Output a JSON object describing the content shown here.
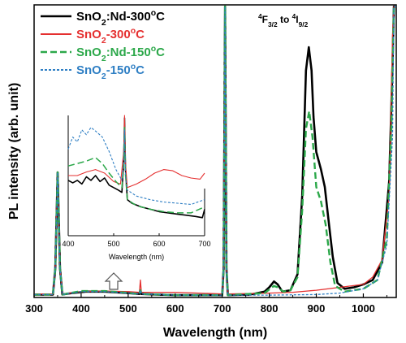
{
  "chart_data": [
    {
      "type": "line",
      "xlabel": "Wavelength (nm)",
      "ylabel": "PL intensity (arb. unit)",
      "xlim": [
        300,
        1070
      ],
      "ylim": [
        0,
        1.0
      ],
      "xticks": [
        300,
        400,
        500,
        600,
        700,
        800,
        900,
        1000
      ],
      "legend_position": "top-left",
      "annotation": {
        "text": "4F3/2 to 4I9/2",
        "parts": [
          [
            "sup",
            "4"
          ],
          [
            "n",
            "F"
          ],
          [
            "sub",
            "3/2"
          ],
          [
            "n",
            " to "
          ],
          [
            "sup",
            "4"
          ],
          [
            "n",
            "I"
          ],
          [
            "sub",
            "9/2"
          ]
        ],
        "x": 880
      },
      "series": [
        {
          "name": "SnO2:Nd-300oC",
          "name_parts": [
            [
              "n",
              "SnO"
            ],
            [
              "sub",
              "2"
            ],
            [
              "n",
              ":Nd-300"
            ],
            [
              "sup",
              "o"
            ],
            [
              "n",
              "C"
            ]
          ],
          "color": "#000000",
          "dash": "solid",
          "width": 2.6,
          "points": [
            [
              300,
              0.01
            ],
            [
              340,
              0.01
            ],
            [
              345,
              0.1
            ],
            [
              350,
              0.43
            ],
            [
              355,
              0.1
            ],
            [
              360,
              0.01
            ],
            [
              380,
              0.015
            ],
            [
              410,
              0.02
            ],
            [
              450,
              0.02
            ],
            [
              500,
              0.015
            ],
            [
              524,
              0.012
            ],
            [
              526,
              0.025
            ],
            [
              528,
              0.012
            ],
            [
              560,
              0.01
            ],
            [
              600,
              0.008
            ],
            [
              700,
              0.008
            ],
            [
              703,
              0.1
            ],
            [
              706,
              1.0
            ],
            [
              709,
              0.1
            ],
            [
              712,
              0.008
            ],
            [
              760,
              0.01
            ],
            [
              790,
              0.02
            ],
            [
              800,
              0.035
            ],
            [
              810,
              0.055
            ],
            [
              818,
              0.045
            ],
            [
              828,
              0.02
            ],
            [
              845,
              0.025
            ],
            [
              860,
              0.08
            ],
            [
              870,
              0.35
            ],
            [
              878,
              0.78
            ],
            [
              884,
              0.86
            ],
            [
              890,
              0.78
            ],
            [
              894,
              0.62
            ],
            [
              900,
              0.5
            ],
            [
              910,
              0.44
            ],
            [
              918,
              0.38
            ],
            [
              925,
              0.28
            ],
            [
              935,
              0.14
            ],
            [
              945,
              0.05
            ],
            [
              960,
              0.03
            ],
            [
              980,
              0.035
            ],
            [
              1000,
              0.045
            ],
            [
              1020,
              0.06
            ],
            [
              1040,
              0.12
            ],
            [
              1055,
              0.4
            ],
            [
              1062,
              0.8
            ],
            [
              1065,
              1.0
            ],
            [
              1070,
              1.0
            ]
          ]
        },
        {
          "name": "SnO2-300oC",
          "name_parts": [
            [
              "n",
              "SnO"
            ],
            [
              "sub",
              "2"
            ],
            [
              "n",
              "-300"
            ],
            [
              "sup",
              "o"
            ],
            [
              "n",
              "C"
            ]
          ],
          "color": "#e53030",
          "dash": "solid",
          "width": 1.3,
          "points": [
            [
              300,
              0.012
            ],
            [
              340,
              0.012
            ],
            [
              345,
              0.1
            ],
            [
              350,
              0.43
            ],
            [
              355,
              0.1
            ],
            [
              360,
              0.012
            ],
            [
              400,
              0.02
            ],
            [
              450,
              0.022
            ],
            [
              500,
              0.02
            ],
            [
              524,
              0.018
            ],
            [
              526,
              0.06
            ],
            [
              528,
              0.018
            ],
            [
              560,
              0.018
            ],
            [
              600,
              0.018
            ],
            [
              650,
              0.015
            ],
            [
              700,
              0.012
            ],
            [
              703,
              0.1
            ],
            [
              706,
              1.0
            ],
            [
              709,
              0.1
            ],
            [
              712,
              0.012
            ],
            [
              800,
              0.015
            ],
            [
              850,
              0.018
            ],
            [
              900,
              0.025
            ],
            [
              950,
              0.035
            ],
            [
              1000,
              0.045
            ],
            [
              1020,
              0.07
            ],
            [
              1040,
              0.13
            ],
            [
              1055,
              0.35
            ],
            [
              1062,
              0.9
            ],
            [
              1065,
              1.0
            ],
            [
              1070,
              1.0
            ]
          ]
        },
        {
          "name": "SnO2:Nd-150oC",
          "name_parts": [
            [
              "n",
              "SnO"
            ],
            [
              "sub",
              "2"
            ],
            [
              "n",
              ":Nd-150"
            ],
            [
              "sup",
              "o"
            ],
            [
              "n",
              "C"
            ]
          ],
          "color": "#2ca84a",
          "dash": "dashed",
          "width": 2.4,
          "points": [
            [
              300,
              0.01
            ],
            [
              340,
              0.01
            ],
            [
              345,
              0.1
            ],
            [
              350,
              0.43
            ],
            [
              355,
              0.1
            ],
            [
              360,
              0.01
            ],
            [
              400,
              0.022
            ],
            [
              450,
              0.022
            ],
            [
              500,
              0.016
            ],
            [
              524,
              0.012
            ],
            [
              526,
              0.025
            ],
            [
              528,
              0.012
            ],
            [
              600,
              0.008
            ],
            [
              700,
              0.008
            ],
            [
              703,
              0.1
            ],
            [
              706,
              1.0
            ],
            [
              709,
              0.1
            ],
            [
              712,
              0.008
            ],
            [
              790,
              0.015
            ],
            [
              810,
              0.04
            ],
            [
              818,
              0.035
            ],
            [
              830,
              0.02
            ],
            [
              845,
              0.025
            ],
            [
              860,
              0.07
            ],
            [
              870,
              0.3
            ],
            [
              878,
              0.58
            ],
            [
              885,
              0.64
            ],
            [
              892,
              0.55
            ],
            [
              900,
              0.38
            ],
            [
              910,
              0.33
            ],
            [
              920,
              0.25
            ],
            [
              930,
              0.12
            ],
            [
              940,
              0.04
            ],
            [
              960,
              0.02
            ],
            [
              1000,
              0.03
            ],
            [
              1030,
              0.06
            ],
            [
              1050,
              0.2
            ],
            [
              1060,
              0.6
            ],
            [
              1065,
              1.0
            ],
            [
              1070,
              1.0
            ]
          ]
        },
        {
          "name": "SnO2-150oC",
          "name_parts": [
            [
              "n",
              "SnO"
            ],
            [
              "sub",
              "2"
            ],
            [
              "n",
              "-150"
            ],
            [
              "sup",
              "o"
            ],
            [
              "n",
              "C"
            ]
          ],
          "color": "#2f7fc4",
          "dash": "dotted",
          "width": 1.3,
          "points": [
            [
              300,
              0.01
            ],
            [
              340,
              0.01
            ],
            [
              345,
              0.1
            ],
            [
              350,
              0.43
            ],
            [
              355,
              0.1
            ],
            [
              360,
              0.01
            ],
            [
              400,
              0.02
            ],
            [
              450,
              0.02
            ],
            [
              500,
              0.015
            ],
            [
              524,
              0.012
            ],
            [
              526,
              0.025
            ],
            [
              528,
              0.012
            ],
            [
              600,
              0.008
            ],
            [
              700,
              0.008
            ],
            [
              703,
              0.1
            ],
            [
              706,
              1.0
            ],
            [
              709,
              0.1
            ],
            [
              712,
              0.008
            ],
            [
              800,
              0.008
            ],
            [
              900,
              0.01
            ],
            [
              950,
              0.015
            ],
            [
              1000,
              0.03
            ],
            [
              1030,
              0.06
            ],
            [
              1050,
              0.18
            ],
            [
              1062,
              0.55
            ],
            [
              1065,
              1.0
            ],
            [
              1070,
              1.0
            ]
          ]
        }
      ]
    },
    {
      "type": "line",
      "role": "inset",
      "xlabel": "Wavelength (nm)",
      "xlim": [
        400,
        700
      ],
      "ylim": [
        0,
        1
      ],
      "xticks": [
        400,
        500,
        600,
        700
      ],
      "series": [
        {
          "name": "SnO2:Nd-300oC",
          "color": "#000000",
          "dash": "solid",
          "width": 1.6,
          "points": [
            [
              400,
              0.46
            ],
            [
              410,
              0.44
            ],
            [
              420,
              0.46
            ],
            [
              430,
              0.43
            ],
            [
              440,
              0.49
            ],
            [
              450,
              0.46
            ],
            [
              460,
              0.5
            ],
            [
              470,
              0.45
            ],
            [
              480,
              0.48
            ],
            [
              490,
              0.42
            ],
            [
              500,
              0.4
            ],
            [
              510,
              0.38
            ],
            [
              518,
              0.36
            ],
            [
              522,
              0.6
            ],
            [
              524,
              0.98
            ],
            [
              526,
              0.55
            ],
            [
              530,
              0.3
            ],
            [
              540,
              0.27
            ],
            [
              560,
              0.24
            ],
            [
              580,
              0.22
            ],
            [
              600,
              0.2
            ],
            [
              620,
              0.19
            ],
            [
              640,
              0.18
            ],
            [
              660,
              0.17
            ],
            [
              680,
              0.16
            ],
            [
              695,
              0.15
            ],
            [
              700,
              0.22
            ]
          ]
        },
        {
          "name": "SnO2-300oC",
          "color": "#e53030",
          "dash": "solid",
          "width": 1.1,
          "points": [
            [
              400,
              0.5
            ],
            [
              420,
              0.5
            ],
            [
              440,
              0.53
            ],
            [
              460,
              0.55
            ],
            [
              480,
              0.52
            ],
            [
              500,
              0.45
            ],
            [
              515,
              0.43
            ],
            [
              522,
              0.7
            ],
            [
              524,
              1.0
            ],
            [
              526,
              0.6
            ],
            [
              530,
              0.4
            ],
            [
              550,
              0.43
            ],
            [
              570,
              0.47
            ],
            [
              590,
              0.52
            ],
            [
              610,
              0.55
            ],
            [
              630,
              0.54
            ],
            [
              650,
              0.5
            ],
            [
              670,
              0.48
            ],
            [
              690,
              0.47
            ],
            [
              700,
              0.52
            ]
          ]
        },
        {
          "name": "SnO2:Nd-150oC",
          "color": "#2ca84a",
          "dash": "dashed",
          "width": 1.5,
          "points": [
            [
              400,
              0.58
            ],
            [
              420,
              0.6
            ],
            [
              440,
              0.62
            ],
            [
              460,
              0.65
            ],
            [
              475,
              0.6
            ],
            [
              490,
              0.52
            ],
            [
              505,
              0.45
            ],
            [
              518,
              0.4
            ],
            [
              522,
              0.6
            ],
            [
              524,
              0.9
            ],
            [
              526,
              0.5
            ],
            [
              530,
              0.3
            ],
            [
              550,
              0.25
            ],
            [
              580,
              0.22
            ],
            [
              610,
              0.2
            ],
            [
              640,
              0.19
            ],
            [
              670,
              0.19
            ],
            [
              700,
              0.24
            ]
          ]
        },
        {
          "name": "SnO2-150oC",
          "color": "#2f7fc4",
          "dash": "dotted",
          "width": 1.1,
          "points": [
            [
              400,
              0.72
            ],
            [
              410,
              0.82
            ],
            [
              420,
              0.78
            ],
            [
              430,
              0.88
            ],
            [
              440,
              0.84
            ],
            [
              450,
              0.9
            ],
            [
              460,
              0.87
            ],
            [
              475,
              0.82
            ],
            [
              490,
              0.7
            ],
            [
              505,
              0.55
            ],
            [
              518,
              0.46
            ],
            [
              522,
              0.6
            ],
            [
              524,
              0.88
            ],
            [
              526,
              0.5
            ],
            [
              530,
              0.38
            ],
            [
              550,
              0.33
            ],
            [
              580,
              0.3
            ],
            [
              610,
              0.28
            ],
            [
              640,
              0.27
            ],
            [
              670,
              0.26
            ],
            [
              700,
              0.3
            ]
          ]
        }
      ]
    }
  ]
}
